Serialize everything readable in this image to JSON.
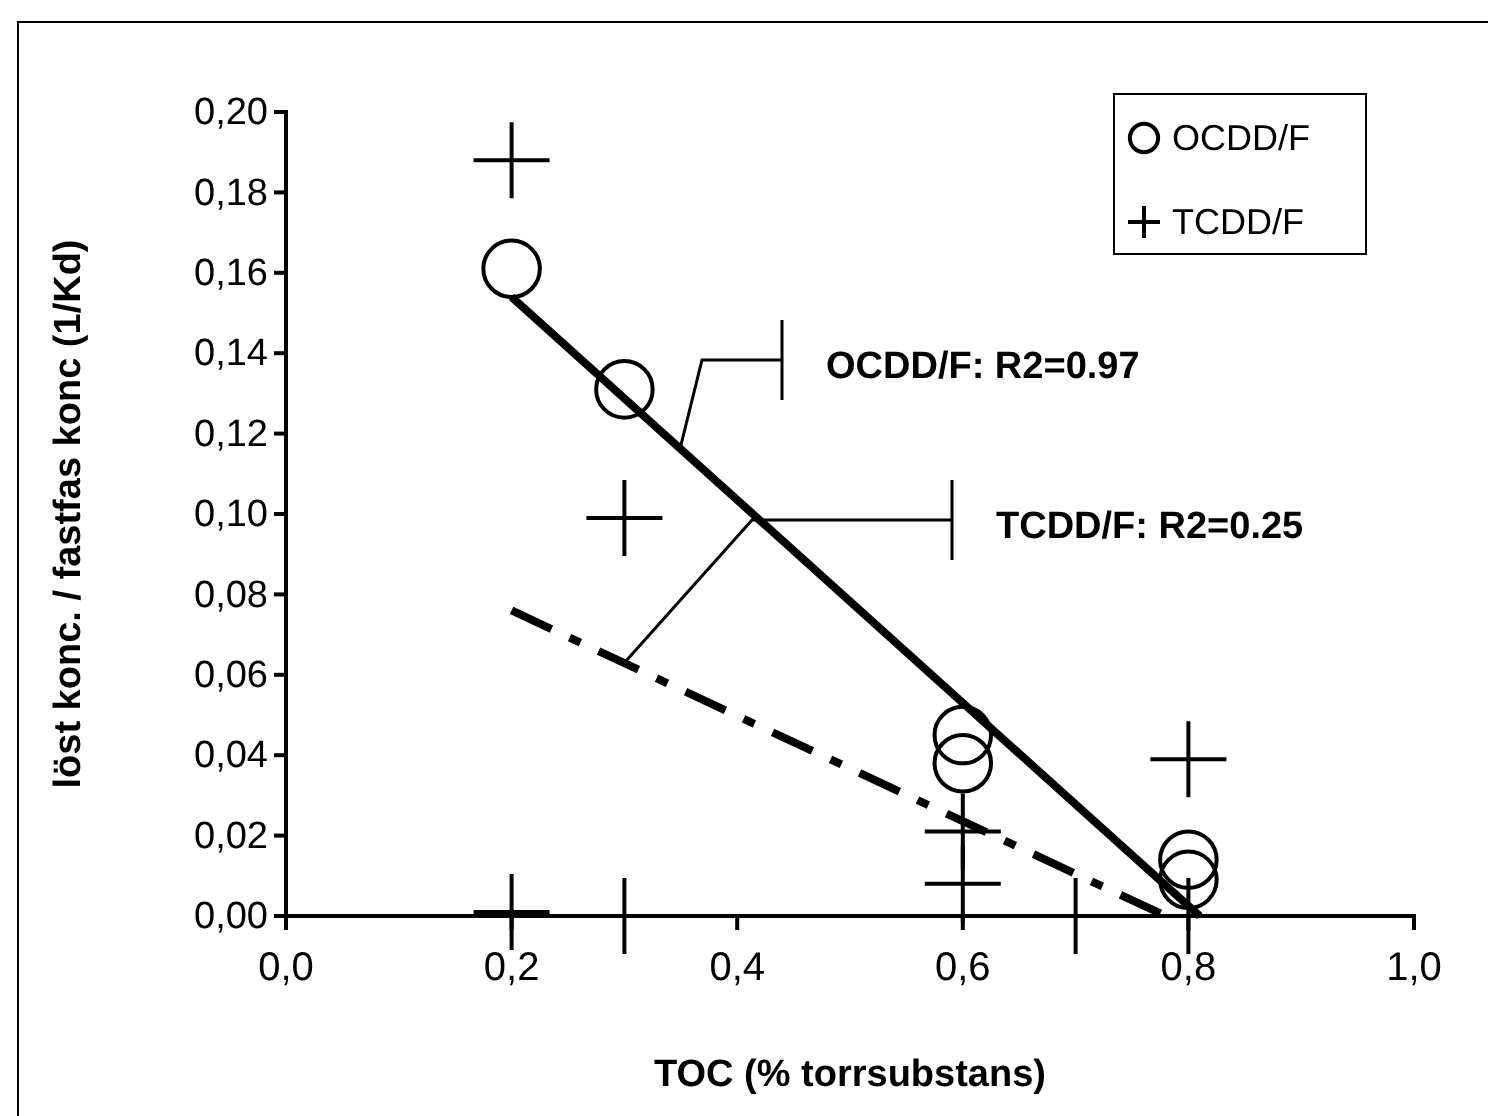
{
  "chart_data": {
    "type": "scatter",
    "xlabel": "TOC (% torrsubstans)",
    "ylabel": "löst konc. / fastfas konc (1/Kd)",
    "xlim": [
      0,
      1
    ],
    "xticks": [
      {
        "value": 0,
        "label": "0,0"
      },
      {
        "value": 0.2,
        "label": "0,2"
      },
      {
        "value": 0.4,
        "label": "0,4"
      },
      {
        "value": 0.6,
        "label": "0,6"
      },
      {
        "value": 0.8,
        "label": "0,8"
      },
      {
        "value": 1,
        "label": "1,0"
      }
    ],
    "ylim": [
      0,
      0.2
    ],
    "yticks": [
      {
        "value": 0,
        "label": "0,00"
      },
      {
        "value": 0.02,
        "label": "0,02"
      },
      {
        "value": 0.04,
        "label": "0,04"
      },
      {
        "value": 0.06,
        "label": "0,06"
      },
      {
        "value": 0.08,
        "label": "0,08"
      },
      {
        "value": 0.1,
        "label": "0,10"
      },
      {
        "value": 0.12,
        "label": "0,12"
      },
      {
        "value": 0.14,
        "label": "0,14"
      },
      {
        "value": 0.16,
        "label": "0,16"
      },
      {
        "value": 0.18,
        "label": "0,18"
      },
      {
        "value": 0.2,
        "label": "0,20"
      }
    ],
    "grid": false,
    "legend": "top right",
    "series": [
      {
        "name": "OCDD/F",
        "color": "#000000",
        "marker": "circle",
        "x": [
          0.2,
          0.3,
          0.6,
          0.6,
          0.8,
          0.8
        ],
        "values": [
          0.161,
          0.131,
          0.045,
          0.038,
          0.014,
          0.009
        ]
      },
      {
        "name": "TCDD/F",
        "color": "#000000",
        "marker": "cross",
        "x": [
          0.2,
          0.2,
          0.3,
          0.3,
          0.6,
          0.6,
          0.7,
          0.8,
          0.8
        ],
        "values": [
          0.188,
          0.001,
          0.099,
          0,
          0.021,
          0.008,
          0,
          0.039,
          0
        ]
      },
      {
        "type": "line",
        "color": "#000000",
        "marker": "none",
        "line_style": "solid",
        "x": [
          0.2,
          0.81
        ],
        "values": [
          0.154,
          0
        ]
      },
      {
        "type": "line",
        "color": "#000000",
        "marker": "none",
        "line_style": "dashed",
        "x": [
          0.2,
          0.78
        ],
        "values": [
          0.076,
          0
        ]
      }
    ],
    "annotations": [
      {
        "text": "OCDD/F: R2=0.97",
        "x": 0.35,
        "y": 0.117
      },
      {
        "text": "TCDD/F: R2=0.25",
        "x": 0.3,
        "y": 0.063
      }
    ]
  }
}
